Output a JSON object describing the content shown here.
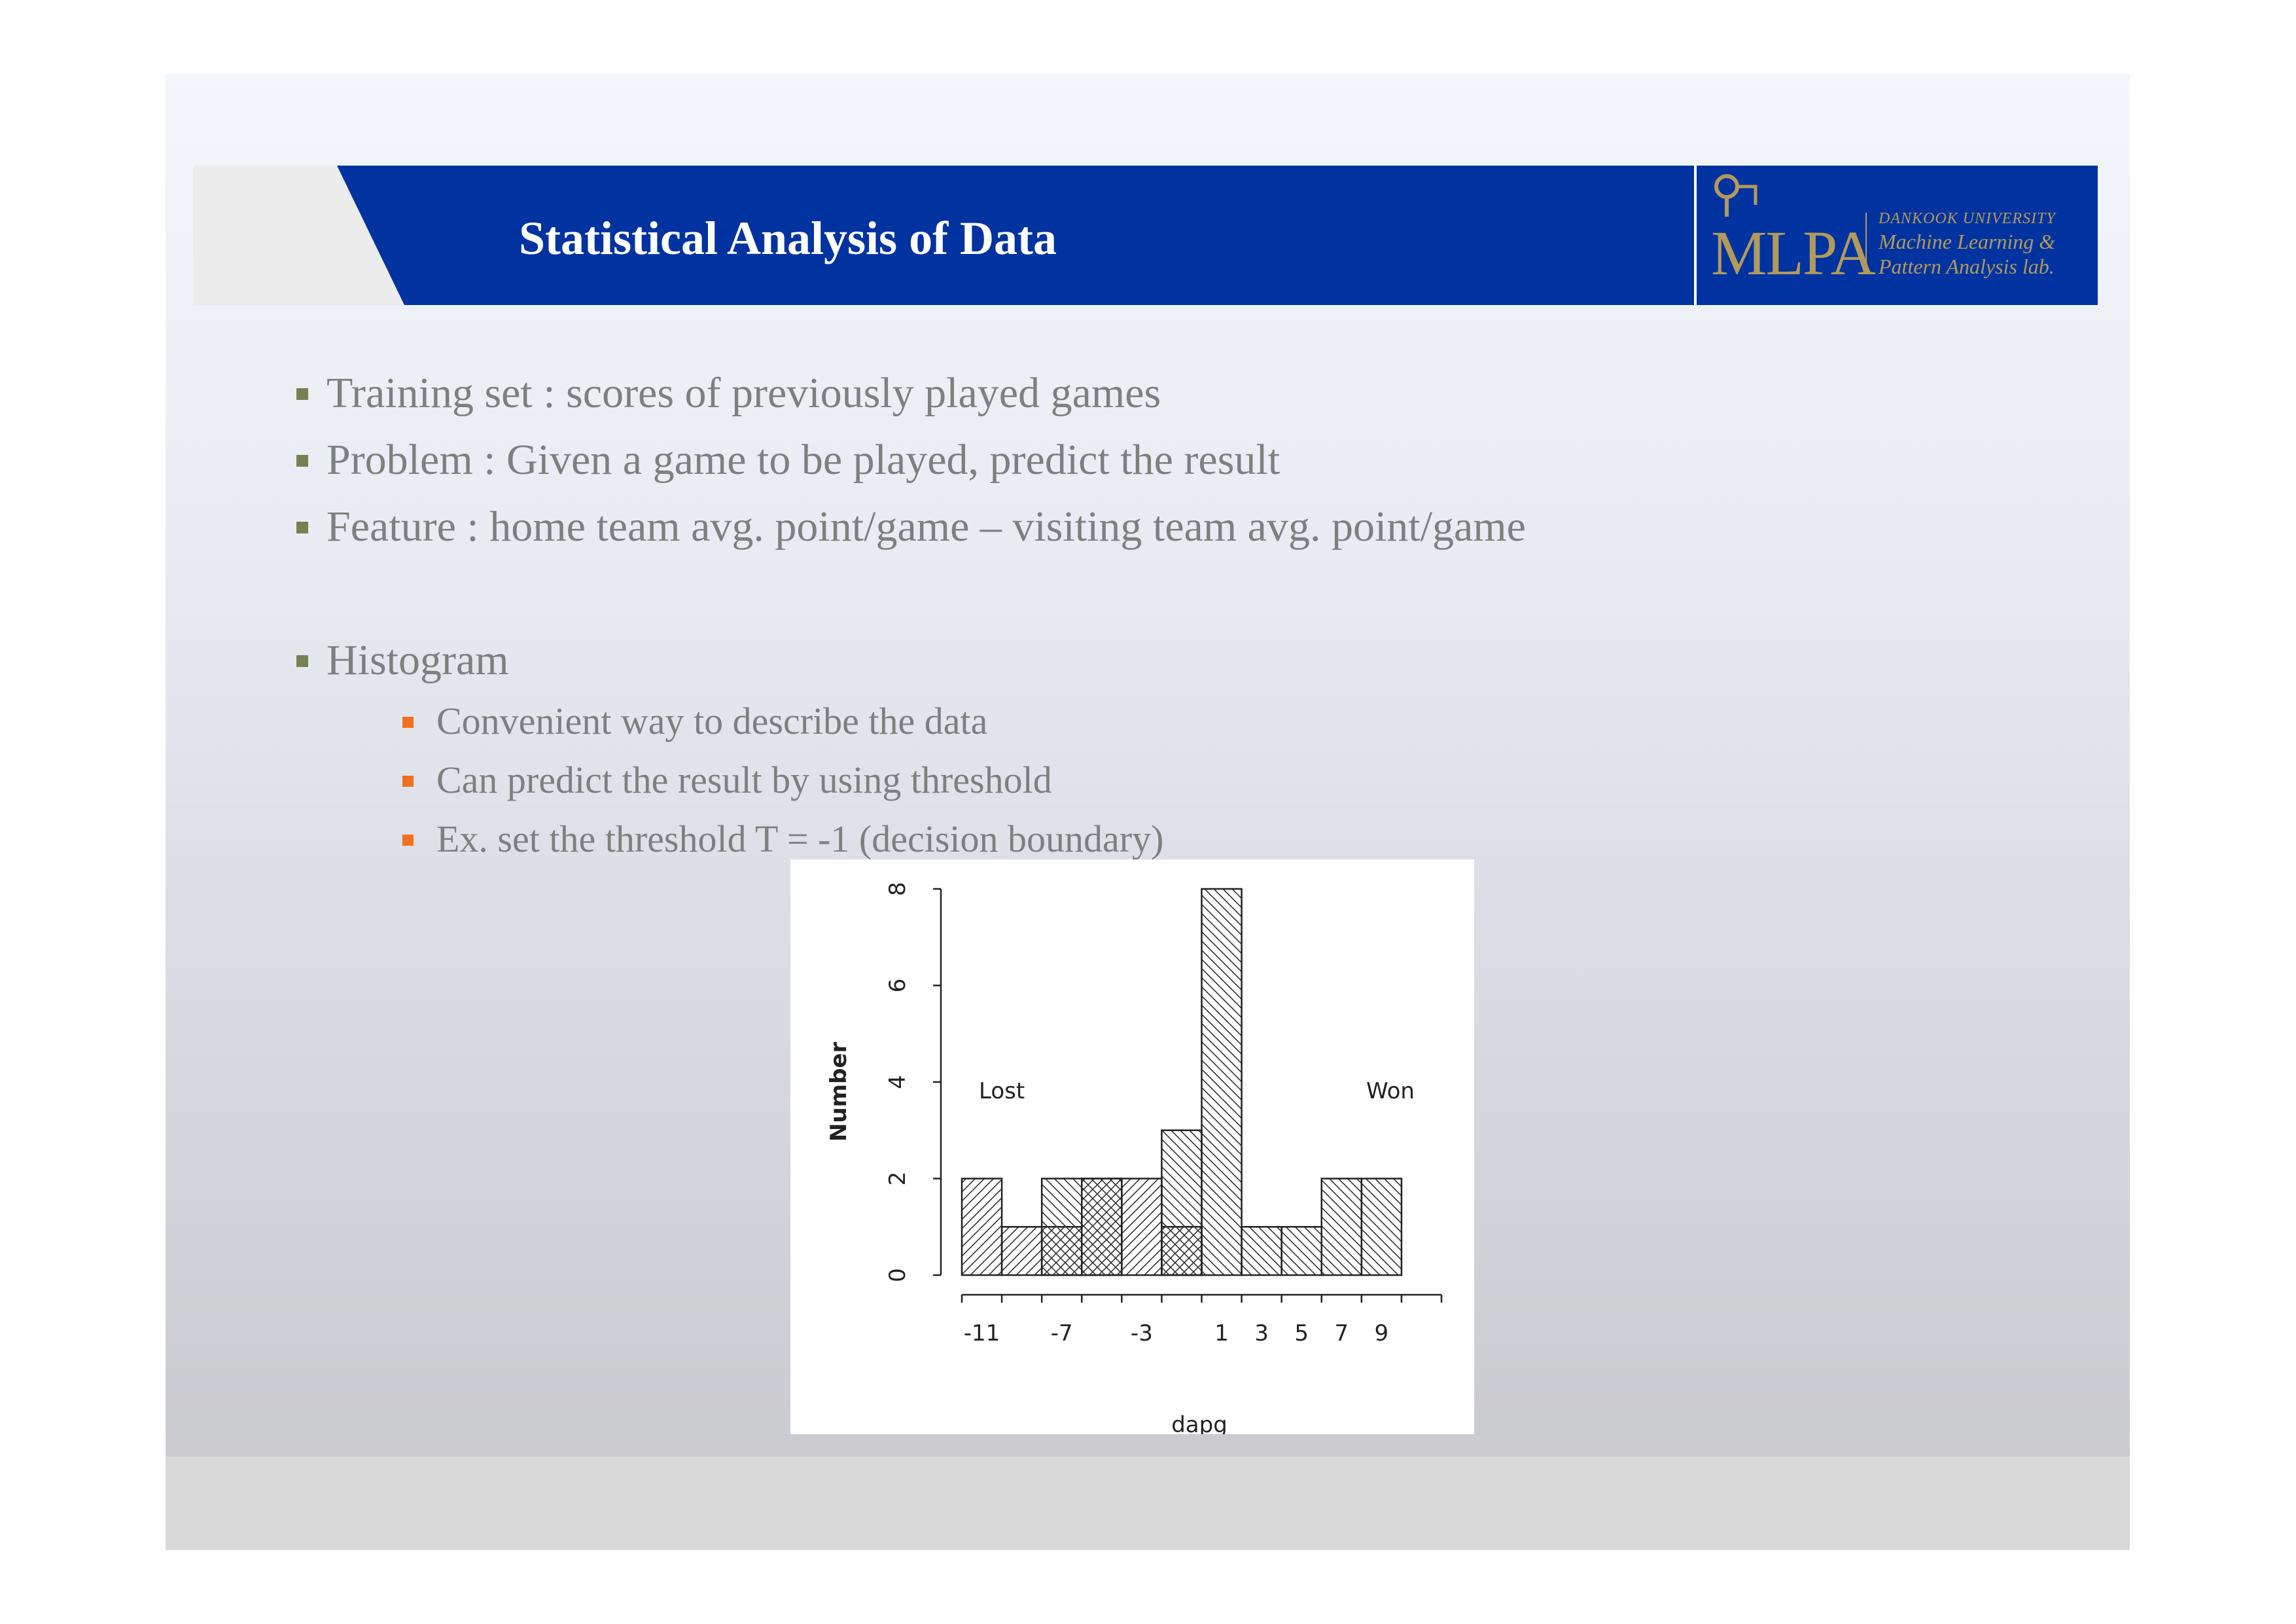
{
  "slide": {
    "title": "Statistical Analysis of Data",
    "logo": {
      "mark": "MLPA",
      "line1": "DANKOOK UNIVERSITY",
      "line2": "Machine Learning &",
      "line3": "Pattern Analysis lab."
    },
    "bullets": [
      "Training set : scores of previously played games",
      "Problem : Given a game to be played, predict the result",
      "Feature : home team avg. point/game – visiting team avg. point/game",
      "Histogram"
    ],
    "sub_bullets": [
      "Convenient way to describe the data",
      "Can predict the result by using threshold",
      "Ex. set the threshold T = -1 (decision boundary)"
    ]
  },
  "colors": {
    "header_blue": "#0033a0",
    "logo_gold": "#b39a5a",
    "text_gray": "#7f7f7f",
    "bullet_olive": "#7a7f52",
    "bullet_orange": "#f07020"
  },
  "chart_data": {
    "type": "bar",
    "title": "",
    "xlabel": "dapg",
    "ylabel": "Number",
    "bin_edges": [
      -12,
      -10,
      -8,
      -6,
      -4,
      -2,
      0,
      2,
      4,
      6,
      8,
      10,
      12
    ],
    "x_tick_labels": [
      "-11",
      "-7",
      "-3",
      "1",
      "3",
      "5",
      "7",
      "9"
    ],
    "x_tick_values": [
      -11,
      -7,
      -3,
      1,
      3,
      5,
      7,
      9
    ],
    "y_ticks": [
      0,
      2,
      4,
      6,
      8
    ],
    "ylim": [
      0,
      8
    ],
    "series": [
      {
        "name": "Lost",
        "values": [
          2,
          1,
          1,
          2,
          2,
          1,
          0,
          0,
          0,
          0,
          0,
          0
        ]
      },
      {
        "name": "Won",
        "values": [
          0,
          0,
          2,
          2,
          0,
          3,
          8,
          1,
          1,
          2,
          2,
          0
        ]
      }
    ],
    "annotations": [
      "Lost",
      "Won"
    ]
  }
}
